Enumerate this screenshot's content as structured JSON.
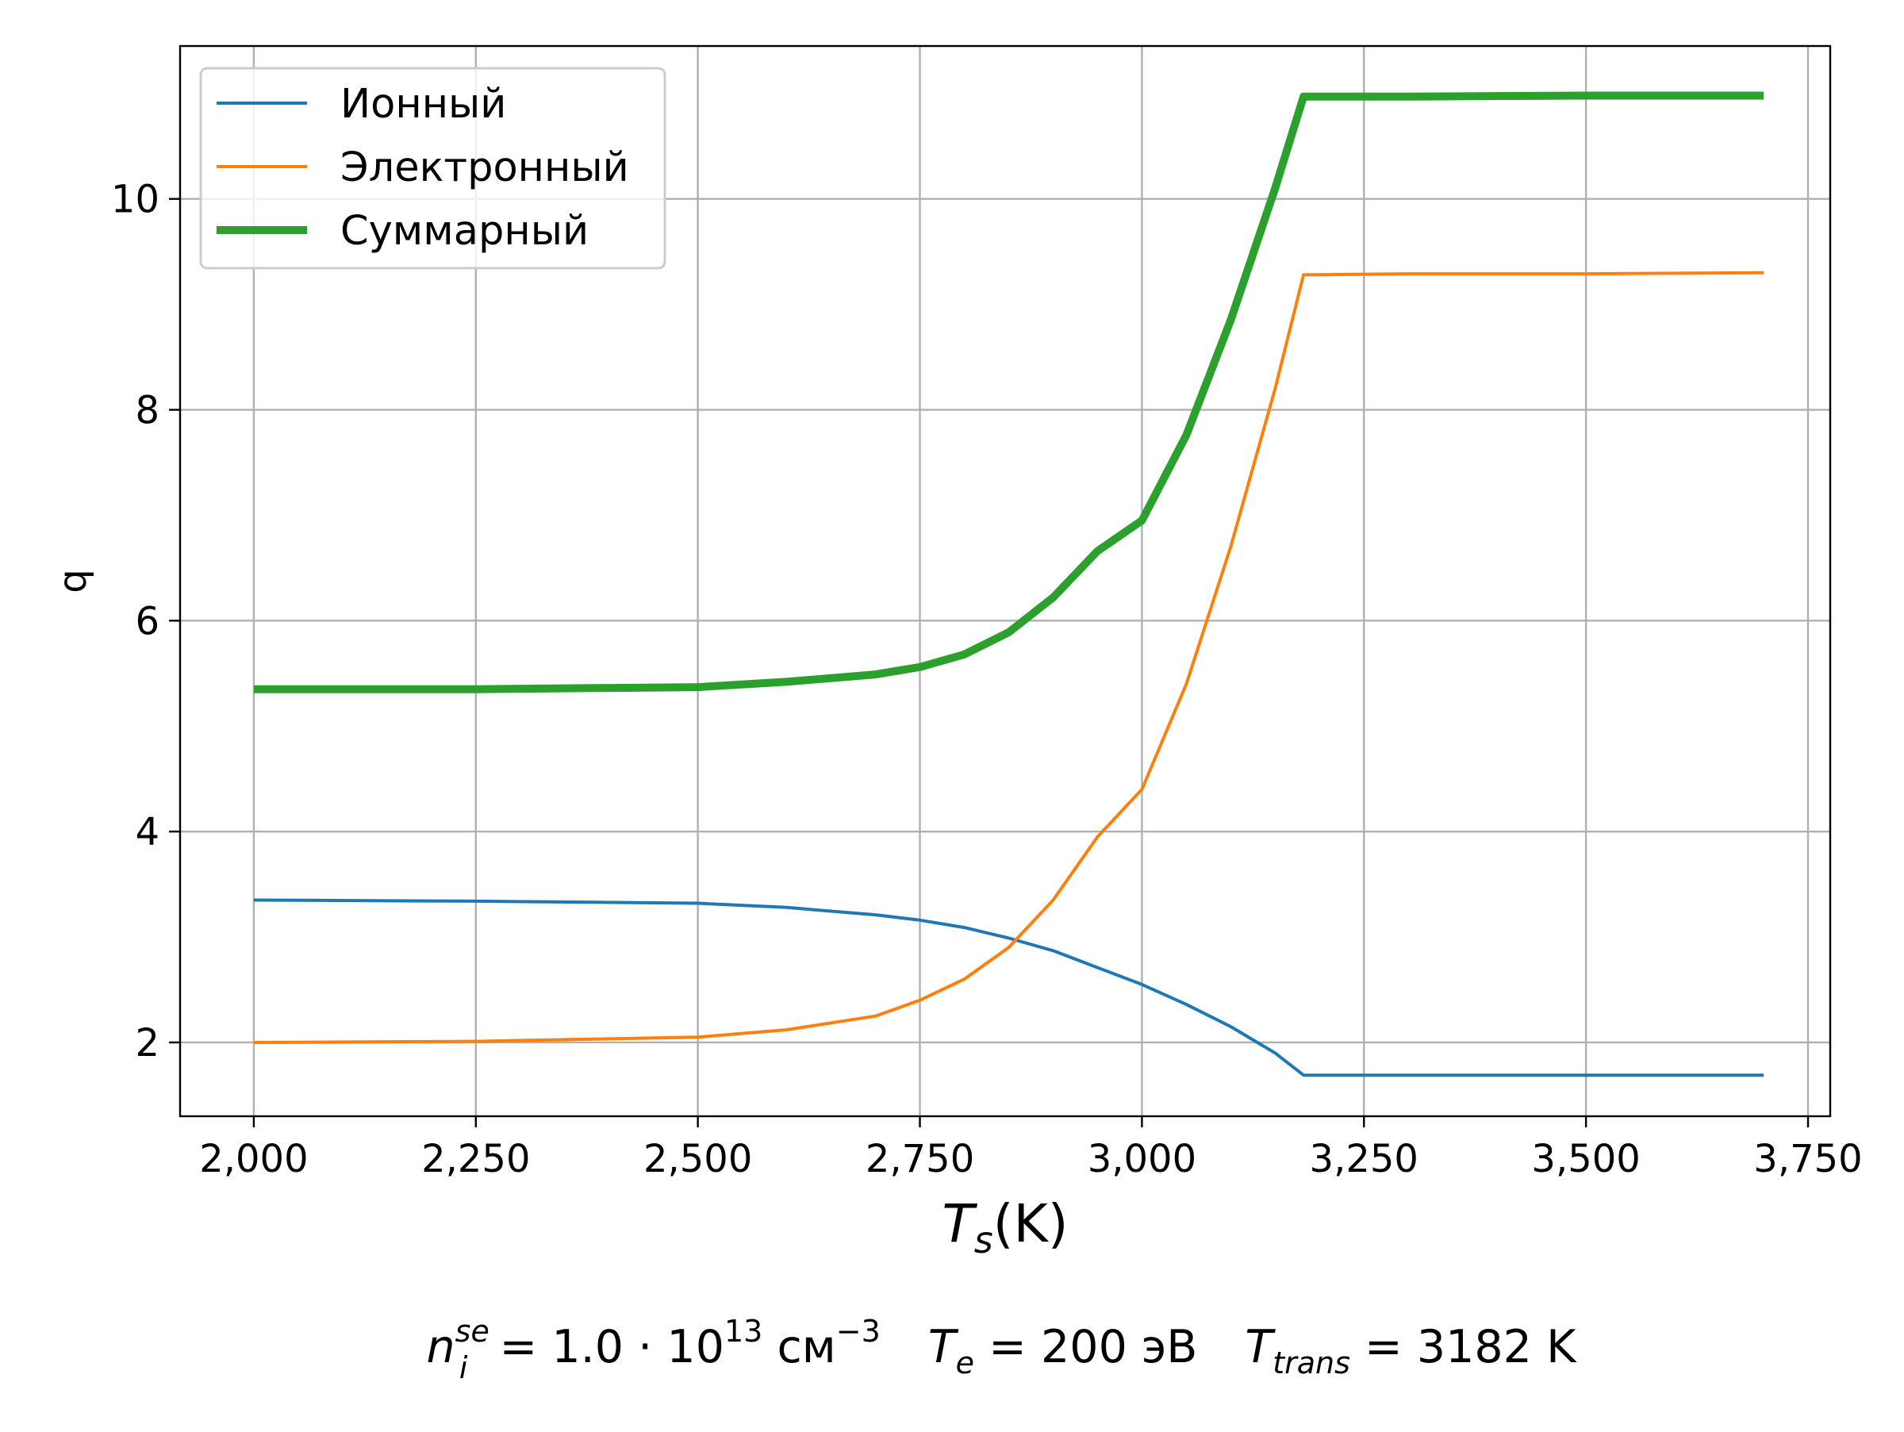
{
  "chart_data": {
    "type": "line",
    "xlabel": "T",
    "xlabel_sub": "s",
    "xlabel_unit": "(K)",
    "ylabel": "q",
    "xlim": [
      1917,
      3775
    ],
    "ylim": [
      1.3,
      11.45
    ],
    "x_ticks": [
      2000,
      2250,
      2500,
      2750,
      3000,
      3250,
      3500,
      3750
    ],
    "x_tick_labels": [
      "2,000",
      "2,250",
      "2,500",
      "2,750",
      "3,000",
      "3,250",
      "3,500",
      "3,750"
    ],
    "y_ticks": [
      2,
      4,
      6,
      8,
      10
    ],
    "y_tick_labels": [
      "2",
      "4",
      "6",
      "8",
      "10"
    ],
    "grid": true,
    "legend_position": "top-left",
    "series": [
      {
        "name": "Ионный",
        "color": "#1f77b4",
        "width": "thin",
        "x": [
          2000,
          2250,
          2500,
          2600,
          2700,
          2750,
          2800,
          2850,
          2900,
          2950,
          3000,
          3050,
          3100,
          3150,
          3182,
          3300,
          3500,
          3700
        ],
        "y": [
          3.35,
          3.34,
          3.32,
          3.28,
          3.21,
          3.16,
          3.09,
          2.99,
          2.87,
          2.71,
          2.55,
          2.36,
          2.15,
          1.9,
          1.69,
          1.69,
          1.69,
          1.69
        ]
      },
      {
        "name": "Электронный",
        "color": "#ff7f0e",
        "width": "thin",
        "x": [
          2000,
          2250,
          2500,
          2600,
          2700,
          2750,
          2800,
          2850,
          2900,
          2950,
          3000,
          3050,
          3100,
          3150,
          3182,
          3300,
          3500,
          3700
        ],
        "y": [
          2.0,
          2.01,
          2.05,
          2.12,
          2.25,
          2.4,
          2.6,
          2.9,
          3.35,
          3.95,
          4.4,
          5.4,
          6.7,
          8.2,
          9.28,
          9.29,
          9.29,
          9.3
        ]
      },
      {
        "name": "Суммарный",
        "color": "#2ca02c",
        "width": "thick",
        "x": [
          2000,
          2250,
          2500,
          2600,
          2700,
          2750,
          2800,
          2850,
          2900,
          2950,
          3000,
          3050,
          3100,
          3150,
          3182,
          3300,
          3500,
          3700
        ],
        "y": [
          5.35,
          5.35,
          5.37,
          5.42,
          5.49,
          5.56,
          5.68,
          5.89,
          6.22,
          6.66,
          6.95,
          7.76,
          8.85,
          10.1,
          10.97,
          10.97,
          10.98,
          10.98
        ]
      }
    ],
    "caption": {
      "n_symbol": "n",
      "n_sub": "i",
      "n_sup": "se",
      "n_value": " = 1.0 · 10",
      "n_exp": "13",
      "n_unit": " см",
      "n_unit_exp": "−3",
      "te_symbol": "T",
      "te_sub": "e",
      "te_value": " = 200 эВ",
      "tt_symbol": "T",
      "tt_sub": "trans",
      "tt_value": " = 3182 K"
    }
  }
}
